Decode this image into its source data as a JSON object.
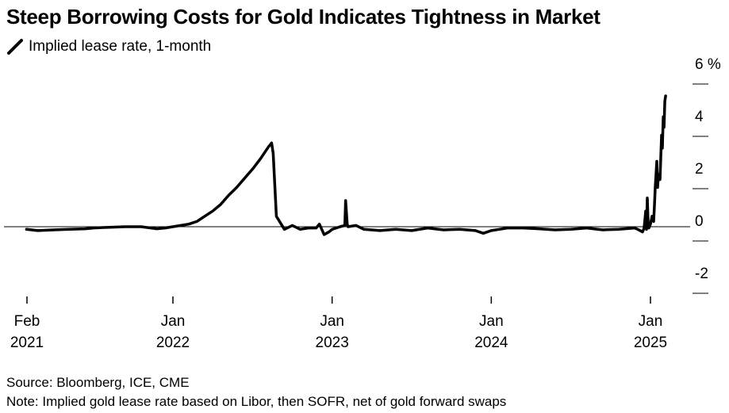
{
  "chart_data": {
    "type": "line",
    "title": "Steep Borrowing Costs for Gold Indicates Tightness in Market",
    "legend": "Implied lease rate, 1-month",
    "xlabel": "",
    "ylabel": "%",
    "y_ticks": [
      6,
      4,
      2,
      0,
      -2
    ],
    "y_tick_labels": [
      "6 %",
      "4",
      "2",
      "0",
      "-2"
    ],
    "ylim": [
      -2,
      6
    ],
    "x_ticks": [
      {
        "t": 2021.083,
        "line1": "Feb",
        "line2": "2021"
      },
      {
        "t": 2022.0,
        "line1": "Jan",
        "line2": "2022"
      },
      {
        "t": 2023.0,
        "line1": "Jan",
        "line2": "2023"
      },
      {
        "t": 2024.0,
        "line1": "Jan",
        "line2": "2024"
      },
      {
        "t": 2025.0,
        "line1": "Jan",
        "line2": "2025"
      }
    ],
    "xlim": [
      2020.95,
      2025.3
    ],
    "series": [
      {
        "name": "Implied lease rate, 1-month",
        "x": [
          2021.08,
          2021.15,
          2021.25,
          2021.35,
          2021.45,
          2021.5,
          2021.6,
          2021.7,
          2021.8,
          2021.9,
          2021.95,
          2022.0,
          2022.05,
          2022.1,
          2022.15,
          2022.2,
          2022.25,
          2022.3,
          2022.35,
          2022.4,
          2022.45,
          2022.5,
          2022.55,
          2022.6,
          2022.62,
          2022.63,
          2022.65,
          2022.7,
          2022.75,
          2022.8,
          2022.85,
          2022.9,
          2022.92,
          2022.95,
          2022.98,
          2023.0,
          2023.05,
          2023.08,
          2023.085,
          2023.095,
          2023.1,
          2023.15,
          2023.2,
          2023.3,
          2023.4,
          2023.5,
          2023.6,
          2023.7,
          2023.8,
          2023.9,
          2023.95,
          2024.0,
          2024.05,
          2024.1,
          2024.2,
          2024.3,
          2024.4,
          2024.5,
          2024.6,
          2024.7,
          2024.8,
          2024.9,
          2024.92,
          2024.95,
          2024.96,
          2024.97,
          2024.975,
          2024.98,
          2024.985,
          2024.99,
          2025.0,
          2025.01,
          2025.02,
          2025.025,
          2025.03,
          2025.04,
          2025.045,
          2025.05,
          2025.06,
          2025.07,
          2025.075,
          2025.08,
          2025.085,
          2025.09,
          2025.095
        ],
        "y": [
          -0.1,
          -0.15,
          -0.12,
          -0.1,
          -0.08,
          -0.05,
          -0.02,
          0.0,
          0.0,
          -0.08,
          -0.05,
          0.0,
          0.05,
          0.1,
          0.2,
          0.4,
          0.6,
          0.85,
          1.2,
          1.5,
          1.85,
          2.2,
          2.6,
          3.05,
          3.2,
          2.8,
          0.4,
          -0.1,
          0.05,
          -0.1,
          -0.05,
          -0.05,
          0.1,
          -0.3,
          -0.2,
          -0.1,
          0.0,
          0.05,
          1.0,
          0.1,
          0.0,
          0.05,
          -0.1,
          -0.15,
          -0.1,
          -0.15,
          -0.05,
          -0.12,
          -0.1,
          -0.15,
          -0.25,
          -0.15,
          -0.1,
          -0.05,
          -0.05,
          -0.08,
          -0.12,
          -0.1,
          -0.05,
          -0.12,
          -0.1,
          -0.05,
          -0.1,
          -0.2,
          -0.05,
          0.6,
          -0.1,
          1.1,
          0.2,
          -0.05,
          0.1,
          0.4,
          0.2,
          0.8,
          1.5,
          2.5,
          1.5,
          2.0,
          1.8,
          3.5,
          3.0,
          4.2,
          3.8,
          4.8,
          5.0
        ]
      }
    ],
    "zero_line": true
  },
  "legend_label": "Implied lease rate, 1-month",
  "source": "Source: Bloomberg, ICE, CME",
  "note": "Note: Implied gold lease rate based on Libor, then SOFR, net of gold forward swaps"
}
